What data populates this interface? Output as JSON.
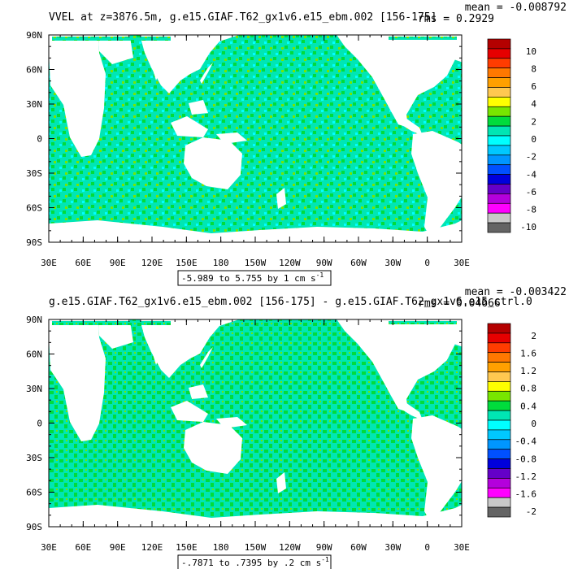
{
  "chart_data": [
    {
      "type": "heatmap",
      "title": "VVEL at z=3876.5m, g.e15.GIAF.T62_gx1v6.e15_ebm.002 [156-175]",
      "stats": {
        "mean": "mean = -0.008792",
        "rms": "rms = 0.2929"
      },
      "range_label": "-5.989 to 5.755 by 1 cm s",
      "range_sup": "-1",
      "x_ticks": [
        "30E",
        "60E",
        "90E",
        "120E",
        "150E",
        "180",
        "150W",
        "120W",
        "90W",
        "60W",
        "30W",
        "0",
        "30E"
      ],
      "y_ticks": [
        "90N",
        "60N",
        "30N",
        "0",
        "30S",
        "60S",
        "90S"
      ],
      "xlim": [
        30,
        390
      ],
      "ylim": [
        -90,
        90
      ],
      "colorbar": {
        "labels": [
          "10",
          "8",
          "6",
          "4",
          "2",
          "0",
          "-2",
          "-4",
          "-6",
          "-8",
          "-10"
        ],
        "colors": [
          "#b40000",
          "#e60000",
          "#ff3c00",
          "#ff7800",
          "#ffa000",
          "#ffc850",
          "#ffff00",
          "#78e600",
          "#00dc3c",
          "#00e6b4",
          "#00ffff",
          "#00c8ff",
          "#0096ff",
          "#0050ff",
          "#0000dc",
          "#6400c8",
          "#b400dc",
          "#ff00ff",
          "#c8c8c8",
          "#646464"
        ]
      },
      "dominant_colors": [
        "#00e6b4",
        "#00dc3c"
      ]
    },
    {
      "type": "heatmap",
      "title": "g.e15.GIAF.T62_gx1v6.e15_ebm.002 [156-175] - g.e15.GIAF.T62_gx1v6.e15_ctrl.0",
      "stats": {
        "mean": "mean = -0.003422",
        "rms": "rms = 0.04666"
      },
      "range_label": "-.7871 to .7395 by .2 cm s",
      "range_sup": "-1",
      "x_ticks": [
        "30E",
        "60E",
        "90E",
        "120E",
        "150E",
        "180",
        "150W",
        "120W",
        "90W",
        "60W",
        "30W",
        "0",
        "30E"
      ],
      "y_ticks": [
        "90N",
        "60N",
        "30N",
        "0",
        "30S",
        "60S",
        "90S"
      ],
      "xlim": [
        30,
        390
      ],
      "ylim": [
        -90,
        90
      ],
      "colorbar": {
        "labels": [
          "2",
          "1.6",
          "1.2",
          "0.8",
          "0.4",
          "0",
          "-0.4",
          "-0.8",
          "-1.2",
          "-1.6",
          "-2"
        ],
        "colors": [
          "#b40000",
          "#e60000",
          "#ff3c00",
          "#ff7800",
          "#ffa000",
          "#ffc850",
          "#ffff00",
          "#78e600",
          "#00dc3c",
          "#00e6b4",
          "#00ffff",
          "#00c8ff",
          "#0096ff",
          "#0050ff",
          "#0000dc",
          "#6400c8",
          "#b400dc",
          "#ff00ff",
          "#c8c8c8",
          "#646464"
        ]
      },
      "dominant_colors": [
        "#00e6b4",
        "#00dc3c"
      ]
    }
  ]
}
